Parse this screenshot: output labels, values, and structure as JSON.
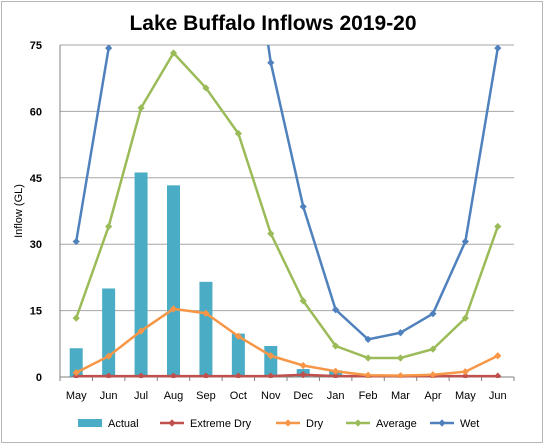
{
  "chart_data": {
    "type": "bar+line",
    "title": "Lake Buffalo Inflows 2019-20",
    "ylabel": "Inflow (GL)",
    "xlabel": "",
    "ylim": [
      0,
      75
    ],
    "yticks": [
      0,
      15,
      30,
      45,
      60,
      75
    ],
    "grid": true,
    "legend_position": "bottom",
    "categories": [
      "May",
      "Jun",
      "Jul",
      "Aug",
      "Sep",
      "Oct",
      "Nov",
      "Dec",
      "Jan",
      "Feb",
      "Mar",
      "Apr",
      "May",
      "Jun"
    ],
    "bar_series": {
      "name": "Actual",
      "color": "#4bacc6",
      "values": [
        6.5,
        20.0,
        46.2,
        43.3,
        21.5,
        9.8,
        7.0,
        1.8,
        1.5,
        null,
        null,
        null,
        null,
        null
      ]
    },
    "series": [
      {
        "name": "Extreme Dry",
        "color": "#c0504d",
        "values": [
          0.2,
          0.2,
          0.2,
          0.2,
          0.2,
          0.2,
          0.2,
          0.5,
          0.2,
          0.2,
          0.2,
          0.2,
          0.2,
          0.2
        ]
      },
      {
        "name": "Dry",
        "color": "#f79646",
        "values": [
          1.0,
          4.7,
          10.4,
          15.4,
          14.4,
          9.2,
          4.8,
          2.6,
          1.3,
          0.4,
          0.3,
          0.5,
          1.2,
          4.8
        ]
      },
      {
        "name": "Average",
        "color": "#9bbb59",
        "values": [
          13.3,
          34.0,
          60.8,
          73.2,
          65.3,
          55.0,
          32.4,
          17.2,
          7.0,
          4.3,
          4.3,
          6.3,
          13.3,
          34.0
        ]
      },
      {
        "name": "Wet",
        "color": "#4f81bd",
        "values": [
          30.6,
          74.3,
          null,
          null,
          null,
          null,
          71.0,
          38.5,
          15.2,
          8.5,
          10.0,
          14.3,
          30.6,
          74.3
        ]
      }
    ]
  }
}
